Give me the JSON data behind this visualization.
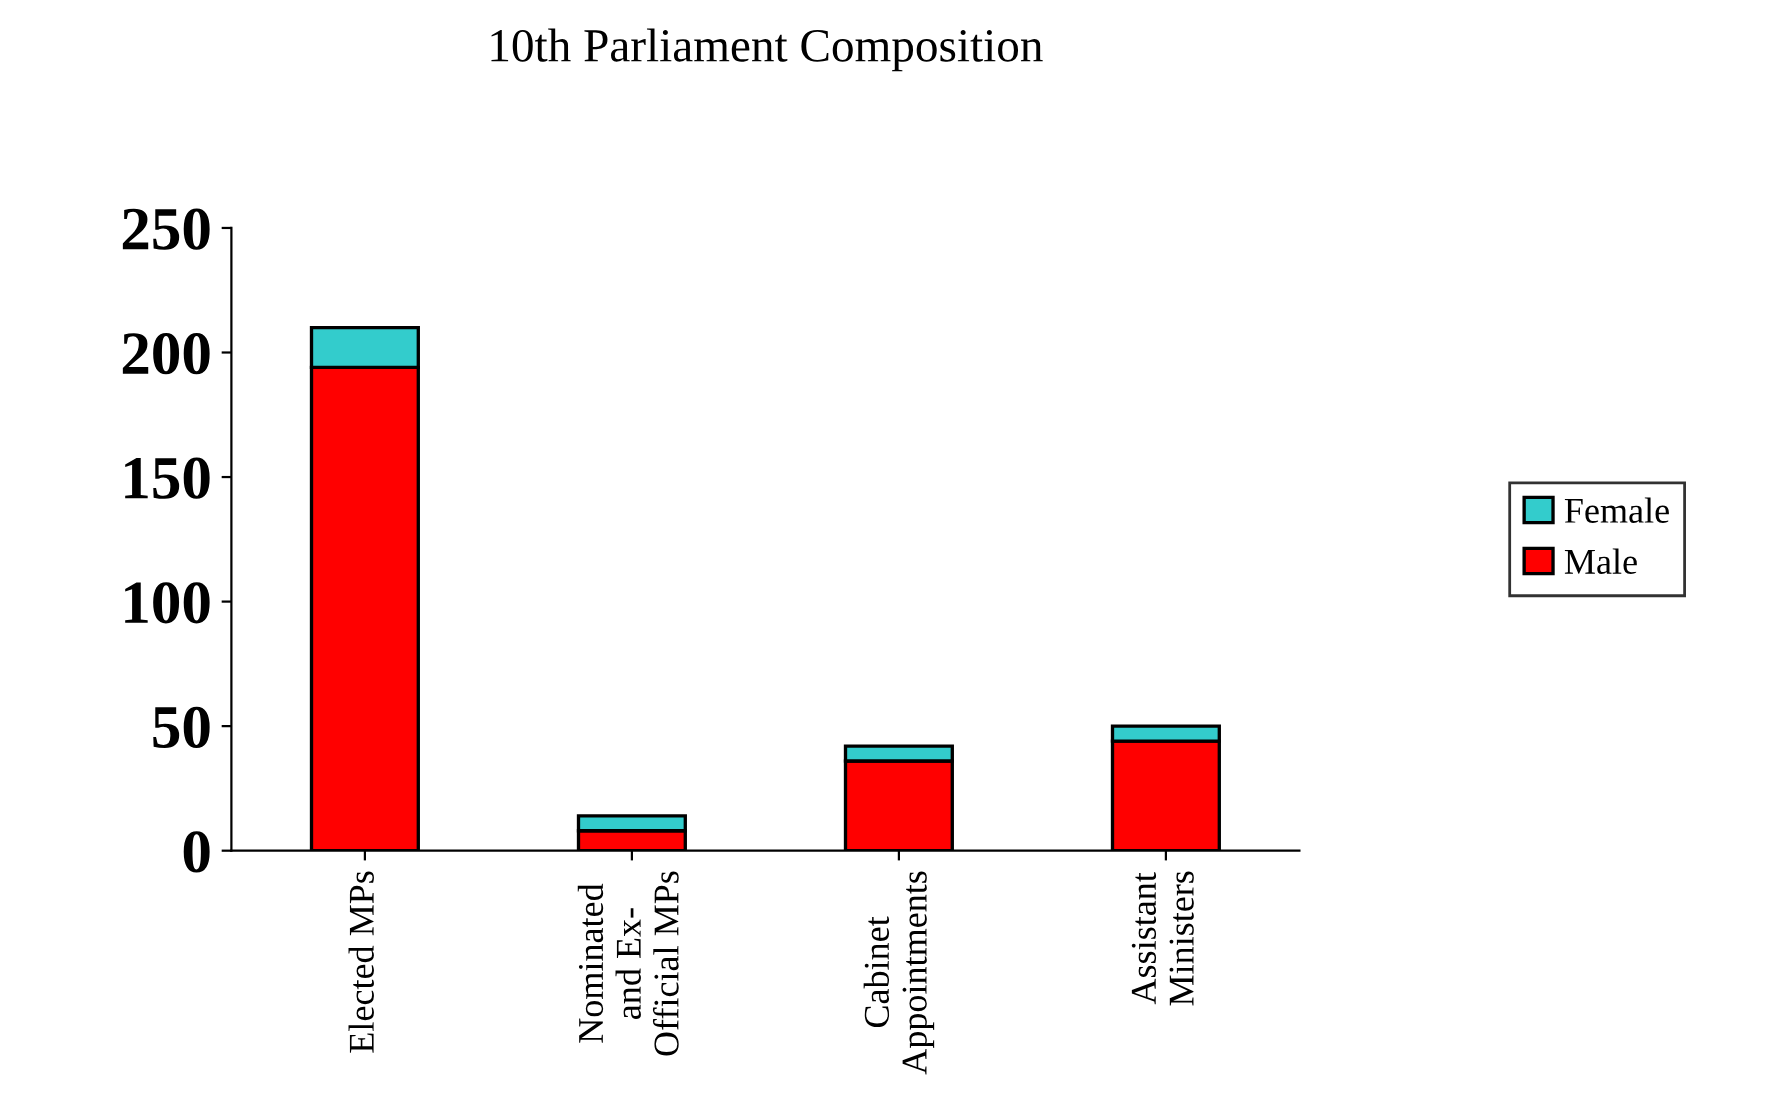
{
  "chart_data": {
    "type": "bar",
    "title": "10th Parliament Composition",
    "categories": [
      "Elected MPs",
      "Nominated\nand Ex-\nOfficial MPs",
      "Cabinet\nAppointments",
      "Assistant\nMinisters"
    ],
    "stacked": true,
    "series": [
      {
        "name": "Male",
        "color": "#ff0000",
        "values": [
          194,
          8,
          36,
          44
        ]
      },
      {
        "name": "Female",
        "color": "#33cccc",
        "values": [
          16,
          6,
          6,
          6
        ]
      }
    ],
    "ylim": [
      0,
      250
    ],
    "yticks": [
      0,
      50,
      100,
      150,
      200,
      250
    ],
    "grid": false,
    "legend": "right"
  }
}
